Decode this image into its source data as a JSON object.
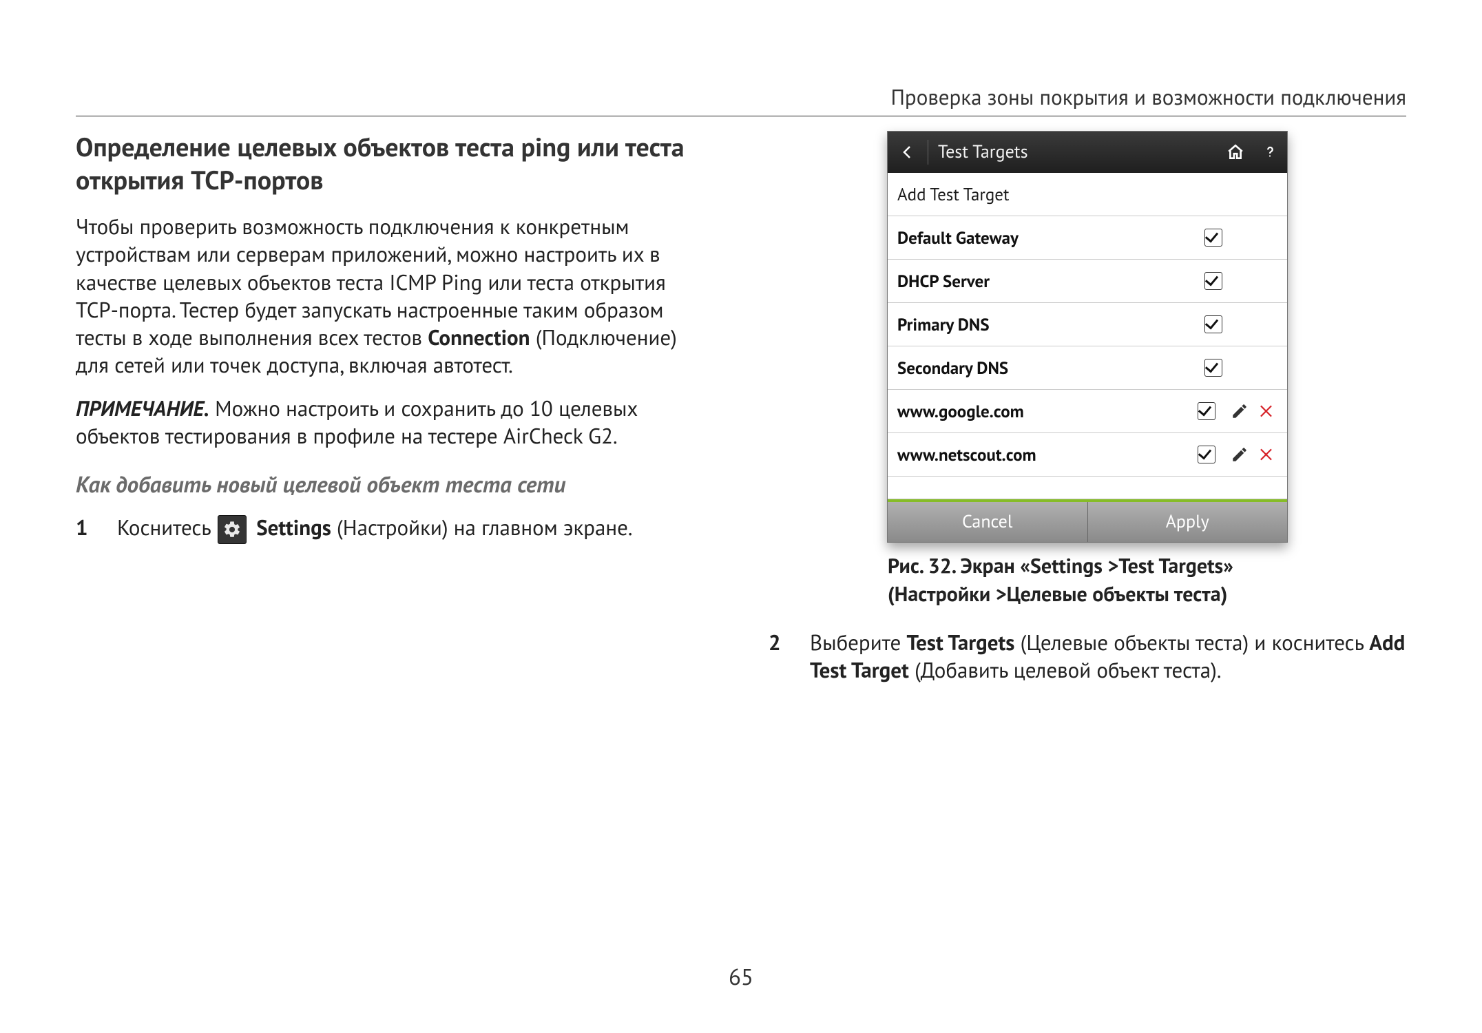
{
  "page_number": "65",
  "running_head": "Проверка зоны покрытия и возможности подключения",
  "left": {
    "heading": "Определение целевых объектов теста ping или теста открытия TCP-портов",
    "para1_a": "Чтобы проверить возможность подключения к конкретным устройствам или серверам приложений, можно настроить их в качестве целевых объектов теста ICMP Ping или теста открытия TCP-порта. Тестер будет запускать настроенные таким образом тесты в ходе выполнения всех тестов ",
    "para1_bold": "Connection",
    "para1_b": " (Подключение) для сетей или точек доступа, включая автотест.",
    "note_label": "ПРИМЕЧАНИЕ.",
    "note_text": " Можно настроить и сохранить до 10 целевых объектов тестирования в профиле на тестере AirCheck G2.",
    "subhead": "Как добавить новый целевой объект теста сети",
    "step1_num": "1",
    "step1_a": "Коснитесь ",
    "step1_bold": "Settings",
    "step1_b": " (Настройки) на главном экране."
  },
  "device": {
    "title": "Test Targets",
    "add_row": "Add Test Target",
    "rows": [
      {
        "label": "Default Gateway",
        "checked": true,
        "editable": false
      },
      {
        "label": "DHCP Server",
        "checked": true,
        "editable": false
      },
      {
        "label": "Primary DNS",
        "checked": true,
        "editable": false
      },
      {
        "label": "Secondary DNS",
        "checked": true,
        "editable": false
      },
      {
        "label": "www.google.com",
        "checked": true,
        "editable": true
      },
      {
        "label": "www.netscout.com",
        "checked": true,
        "editable": true
      }
    ],
    "cancel": "Cancel",
    "apply": "Apply"
  },
  "caption": "Рис. 32. Экран «Settings >Test Targets» (Настройки >Целевые объекты теста)",
  "right": {
    "step2_num": "2",
    "step2_a": "Выберите ",
    "step2_bold1": "Test Targets",
    "step2_b": " (Целевые объекты теста) и коснитесь ",
    "step2_bold2": "Add Test Target",
    "step2_c": " (Добавить целевой объект теста)."
  }
}
